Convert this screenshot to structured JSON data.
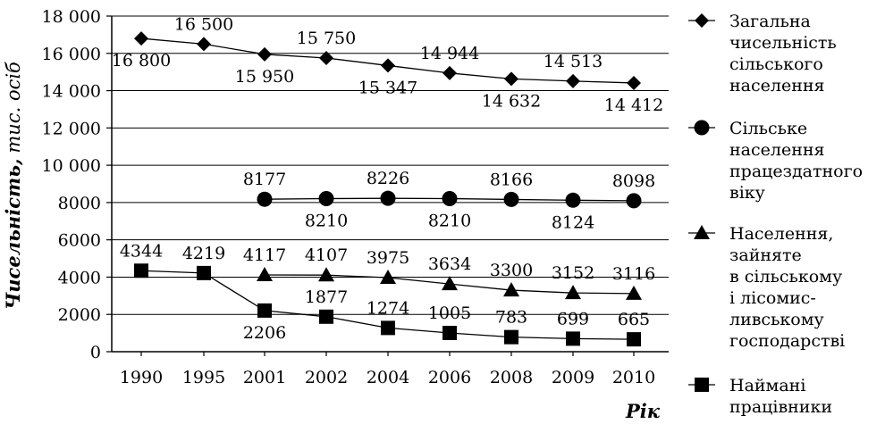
{
  "chart_data": {
    "type": "line",
    "categories": [
      "1990",
      "1995",
      "2001",
      "2002",
      "2004",
      "2006",
      "2008",
      "2009",
      "2010"
    ],
    "ylabel": "Чисельність,",
    "ylabel_unit": "тис. осіб",
    "xlabel": "Рік",
    "ylim": [
      0,
      18000
    ],
    "y_ticks": [
      {
        "value": 0,
        "label": "0"
      },
      {
        "value": 2000,
        "label": "2000"
      },
      {
        "value": 4000,
        "label": "4000"
      },
      {
        "value": 6000,
        "label": "6000"
      },
      {
        "value": 8000,
        "label": "8000"
      },
      {
        "value": 10000,
        "label": "10 000"
      },
      {
        "value": 12000,
        "label": "12 000"
      },
      {
        "value": 14000,
        "label": "14 000"
      },
      {
        "value": 16000,
        "label": "16 000"
      },
      {
        "value": 18000,
        "label": "18 000"
      }
    ],
    "grid": {
      "horizontal": true,
      "vertical": false
    },
    "legend_position": "right",
    "series": [
      {
        "name": "Загальна чисельність сільського населення",
        "legend_lines": [
          "Загальна",
          "чисельність",
          "сільського",
          "населення"
        ],
        "marker": "diamond",
        "values": [
          16800,
          16500,
          15950,
          15750,
          15347,
          14944,
          14632,
          14513,
          14412
        ],
        "labels": [
          "16 800",
          "16 500",
          "15 950",
          "15 750",
          "15 347",
          "14 944",
          "14 632",
          "14 513",
          "14 412"
        ],
        "label_side": [
          "below",
          "above",
          "below",
          "above",
          "below",
          "above",
          "below",
          "above",
          "below"
        ]
      },
      {
        "name": "Сільське населення працездатного віку",
        "legend_lines": [
          "Сільське",
          "населення",
          "працездатного",
          "віку"
        ],
        "marker": "circle",
        "values": [
          null,
          null,
          8177,
          8210,
          8226,
          8210,
          8166,
          8124,
          8098
        ],
        "labels": [
          "",
          "",
          "8177",
          "8210",
          "8226",
          "8210",
          "8166",
          "8124",
          "8098"
        ],
        "label_side": [
          "",
          "",
          "above",
          "below",
          "above",
          "below",
          "above",
          "below",
          "above"
        ]
      },
      {
        "name": "Населення, зайняте в сільському і лісомисливському господарстві",
        "legend_lines": [
          "Населення,",
          "зайняте",
          "в сільському",
          "і лісомис-",
          "ливському",
          "господарстві"
        ],
        "marker": "triangle",
        "values": [
          null,
          null,
          4117,
          4107,
          3975,
          3634,
          3300,
          3152,
          3116
        ],
        "labels": [
          "",
          "",
          "4117",
          "4107",
          "3975",
          "3634",
          "3300",
          "3152",
          "3116"
        ],
        "label_side": [
          "",
          "",
          "above",
          "above",
          "above",
          "above",
          "above",
          "above",
          "above"
        ]
      },
      {
        "name": "Наймані працівники",
        "legend_lines": [
          "Наймані",
          "працівники"
        ],
        "marker": "square",
        "values": [
          4344,
          4219,
          2206,
          1877,
          1274,
          1005,
          783,
          699,
          665
        ],
        "labels": [
          "4344",
          "4219",
          "2206",
          "1877",
          "1274",
          "1005",
          "783",
          "699",
          "665"
        ],
        "label_side": [
          "above",
          "above",
          "below",
          "above",
          "above",
          "above",
          "above",
          "above",
          "above"
        ]
      }
    ]
  }
}
